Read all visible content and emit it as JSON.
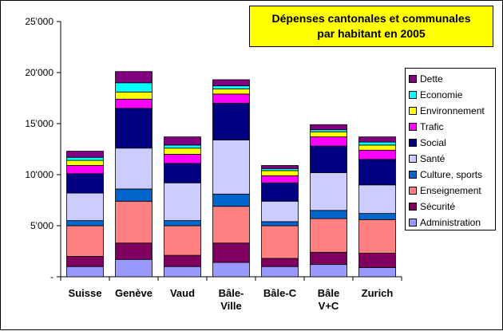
{
  "chart_data": {
    "type": "bar",
    "stacked": true,
    "title_lines": [
      "Dépenses cantonales et communales",
      "par habitant en 2005"
    ],
    "categories": [
      [
        "Suisse"
      ],
      [
        "Genève"
      ],
      [
        "Vaud"
      ],
      [
        "Bâle-",
        "Ville"
      ],
      [
        "Bâle-C"
      ],
      [
        "Bâle",
        "V+C"
      ],
      [
        "Zurich"
      ]
    ],
    "y_ticks": [
      "-",
      "5'000",
      "10'000",
      "15'000",
      "20'000",
      "25'000"
    ],
    "ylim": [
      0,
      25000
    ],
    "grid": false,
    "legend_position": "right",
    "series": [
      {
        "name": "Administration",
        "color": "#9999ff",
        "values": [
          1000,
          1700,
          1000,
          1400,
          1000,
          1200,
          900
        ]
      },
      {
        "name": "Sécurité",
        "color": "#800060",
        "values": [
          1000,
          1600,
          1100,
          1900,
          800,
          1200,
          1400
        ]
      },
      {
        "name": "Enseignement",
        "color": "#ff8080",
        "values": [
          3000,
          4100,
          2900,
          3600,
          3200,
          3300,
          3300
        ]
      },
      {
        "name": "Culture, sports",
        "color": "#0066cc",
        "values": [
          500,
          1200,
          500,
          1200,
          400,
          800,
          600
        ]
      },
      {
        "name": "Santé",
        "color": "#ccccff",
        "values": [
          2700,
          4000,
          3700,
          5300,
          2000,
          3700,
          2800
        ]
      },
      {
        "name": "Social",
        "color": "#000080",
        "values": [
          1900,
          3900,
          1900,
          3600,
          1800,
          2600,
          2500
        ]
      },
      {
        "name": "Trafic",
        "color": "#ff00ff",
        "values": [
          800,
          900,
          900,
          900,
          700,
          900,
          900
        ]
      },
      {
        "name": "Environnement",
        "color": "#ffff00",
        "values": [
          500,
          700,
          600,
          500,
          500,
          500,
          500
        ]
      },
      {
        "name": "Economie",
        "color": "#00ffff",
        "values": [
          300,
          900,
          300,
          300,
          200,
          200,
          300
        ]
      },
      {
        "name": "Dette",
        "color": "#800080",
        "values": [
          600,
          1100,
          800,
          600,
          300,
          500,
          500
        ]
      }
    ]
  }
}
